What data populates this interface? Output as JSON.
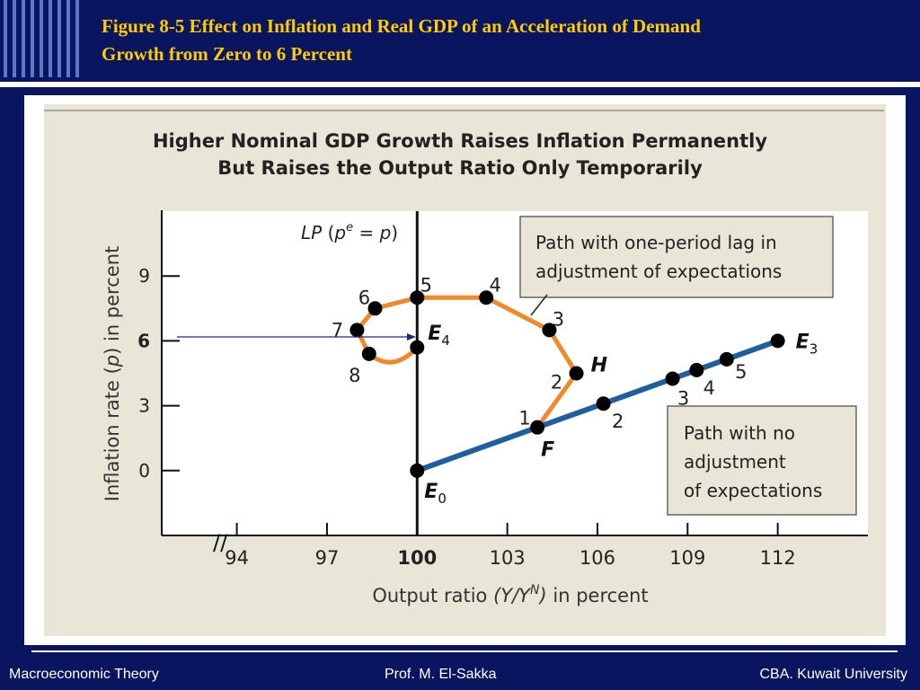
{
  "slide": {
    "title_line1": "Figure 8-5  Effect on Inflation and Real GDP  of an Acceleration of Demand",
    "title_line2": "Growth from Zero to 6 Percent"
  },
  "footer": {
    "left": "Macroeconomic Theory",
    "center": "Prof. M. El-Sakka",
    "right": "CBA. Kuwait University"
  },
  "colors": {
    "slide_background": "#0a1560",
    "title_text": "#ffcc00",
    "figure_background": "#e9e6d8",
    "orange_path": "#f0892a",
    "blue_path": "#1f5fa0",
    "point": "#000000",
    "annotation_arrow": "#1a2a8a"
  },
  "chart_data": {
    "type": "line",
    "title_line1": "Higher Nominal GDP Growth Raises Inflation Permanently",
    "title_line2": "But Raises the Output Ratio Only Temporarily",
    "xlabel": "Output ratio",
    "xlabel_expr_base": "(Y/Y",
    "xlabel_expr_sup": "N",
    "xlabel_expr_end": ")",
    "xlabel_suffix": "in percent",
    "ylabel_prefix": "Inflation rate (",
    "ylabel_var": "p",
    "ylabel_suffix": ") in percent",
    "xlim": [
      91.5,
      115
    ],
    "ylim": [
      -3,
      12
    ],
    "x_ticks": [
      "94",
      "97",
      "100",
      "103",
      "106",
      "109",
      "112"
    ],
    "y_ticks": [
      "0",
      "3",
      "6",
      "9"
    ],
    "bold_x_tick": "100",
    "bold_y_tick": "6",
    "axis_break": "//",
    "lp_line": {
      "x": 100,
      "label_main": "LP",
      "label_paren_open": "(",
      "label_p1": "p",
      "label_sup": "e",
      "label_eq": "=",
      "label_p2": "p",
      "label_paren_close": ")"
    },
    "series": [
      {
        "color": "orange",
        "points": [
          {
            "x": 104.0,
            "y": 2.0,
            "label": "1"
          },
          {
            "x": 105.3,
            "y": 4.5,
            "label": "2"
          },
          {
            "x": 104.4,
            "y": 6.5,
            "label": "3"
          },
          {
            "x": 102.3,
            "y": 8.0,
            "label": "4"
          },
          {
            "x": 100.0,
            "y": 8.0,
            "label": "5"
          },
          {
            "x": 98.6,
            "y": 7.5,
            "label": "6"
          },
          {
            "x": 98.0,
            "y": 6.5,
            "label": "7"
          },
          {
            "x": 98.4,
            "y": 5.4,
            "label": "8"
          },
          {
            "x": 100.0,
            "y": 5.7,
            "label": "E4"
          }
        ]
      },
      {
        "color": "blue",
        "points": [
          {
            "x": 100.0,
            "y": 0.0,
            "label": "E0"
          },
          {
            "x": 104.0,
            "y": 2.0,
            "label": "1"
          },
          {
            "x": 106.2,
            "y": 3.1,
            "label": "2"
          },
          {
            "x": 108.5,
            "y": 4.25,
            "label": "3"
          },
          {
            "x": 109.3,
            "y": 4.65,
            "label": "4"
          },
          {
            "x": 110.3,
            "y": 5.15,
            "label": "5"
          },
          {
            "x": 112.0,
            "y": 6.0,
            "label": "E3"
          }
        ]
      }
    ],
    "point_labels": {
      "E0": {
        "letter": "E",
        "sub": "0"
      },
      "E4": {
        "letter": "E",
        "sub": "4"
      },
      "E3": {
        "letter": "E",
        "sub": "3"
      },
      "F": "F",
      "H": "H"
    },
    "annotations": {
      "orange_box": [
        "Path with one-period lag in",
        "adjustment of expectations"
      ],
      "blue_box": [
        "Path with no",
        "adjustment",
        "of expectations"
      ]
    }
  }
}
